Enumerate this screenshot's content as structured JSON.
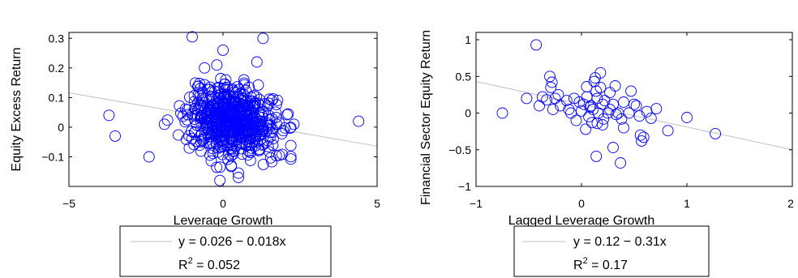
{
  "chart_data": [
    {
      "type": "scatter",
      "xlabel": "Leverage Growth",
      "ylabel": "Equity Excess Return",
      "xlim": [
        -5,
        5
      ],
      "ylim": [
        -0.2,
        0.32
      ],
      "xticks": [
        "−5",
        "0",
        "5"
      ],
      "yticks": [
        "−0.1",
        "0",
        "0.1",
        "0.2",
        "0.3"
      ],
      "grid": false,
      "marker_color": "#0000ff",
      "fit_color": "#c0c0c0",
      "legend_placement": "below",
      "legend": {
        "equation": "y = 0.026 − 0.018x",
        "r2_prefix": "R",
        "r2_sup": "2",
        "r2_value": " = 0.052"
      },
      "fit": {
        "intercept": 0.026,
        "slope": -0.018
      },
      "outliers": [
        {
          "x": -3.7,
          "y": 0.04
        },
        {
          "x": -3.5,
          "y": -0.03
        },
        {
          "x": -2.4,
          "y": -0.1
        },
        {
          "x": 4.4,
          "y": 0.02
        },
        {
          "x": -1.0,
          "y": 0.305
        },
        {
          "x": 1.3,
          "y": 0.3
        },
        {
          "x": 0.0,
          "y": 0.26
        },
        {
          "x": -0.6,
          "y": 0.2
        },
        {
          "x": -0.2,
          "y": 0.21
        },
        {
          "x": -0.1,
          "y": -0.18
        },
        {
          "x": 0.5,
          "y": -0.17
        },
        {
          "x": 0.5,
          "y": -0.155
        },
        {
          "x": 1.1,
          "y": 0.22
        },
        {
          "x": 2.3,
          "y": 0.01
        },
        {
          "x": -1.9,
          "y": 0.01
        }
      ],
      "cloud": {
        "n": 620,
        "x_center": 0.3,
        "x_spread": 0.7,
        "x_min": -1.8,
        "x_max": 2.2,
        "y_center": 0.02,
        "y_spread": 0.058,
        "y_min": -0.16,
        "y_max": 0.2,
        "seed": 7
      }
    },
    {
      "type": "scatter",
      "xlabel": "Lagged Leverage Growth",
      "ylabel": "Financial Sector Equity Return",
      "xlim": [
        -1,
        2
      ],
      "ylim": [
        -1,
        1.1
      ],
      "xticks": [
        "−1",
        "0",
        "1",
        "2"
      ],
      "yticks": [
        "−1",
        "−0.5",
        "0",
        "0.5",
        "1"
      ],
      "grid": false,
      "marker_color": "#0000ff",
      "fit_color": "#c0c0c0",
      "legend_placement": "below",
      "legend": {
        "equation": "y = 0.12 − 0.31x",
        "r2_prefix": "R",
        "r2_sup": "2",
        "r2_value": " = 0.17"
      },
      "fit": {
        "intercept": 0.12,
        "slope": -0.31
      },
      "points": [
        {
          "x": -0.75,
          "y": 0.0
        },
        {
          "x": -0.43,
          "y": 0.93
        },
        {
          "x": -0.52,
          "y": 0.2
        },
        {
          "x": -0.4,
          "y": 0.1
        },
        {
          "x": -0.37,
          "y": 0.22
        },
        {
          "x": -0.3,
          "y": 0.5
        },
        {
          "x": -0.28,
          "y": 0.42
        },
        {
          "x": -0.29,
          "y": 0.35
        },
        {
          "x": -0.33,
          "y": 0.18
        },
        {
          "x": -0.25,
          "y": 0.2
        },
        {
          "x": -0.2,
          "y": 0.1
        },
        {
          "x": -0.27,
          "y": 0.05
        },
        {
          "x": -0.22,
          "y": 0.25
        },
        {
          "x": -0.14,
          "y": 0.17
        },
        {
          "x": -0.12,
          "y": 0.05
        },
        {
          "x": -0.07,
          "y": 0.2
        },
        {
          "x": -0.05,
          "y": -0.1
        },
        {
          "x": -0.02,
          "y": 0.15
        },
        {
          "x": 0.0,
          "y": 0.03
        },
        {
          "x": 0.02,
          "y": 0.12
        },
        {
          "x": 0.04,
          "y": -0.22
        },
        {
          "x": 0.05,
          "y": 0.22
        },
        {
          "x": 0.07,
          "y": -0.05
        },
        {
          "x": 0.09,
          "y": 0.1
        },
        {
          "x": 0.1,
          "y": -0.13
        },
        {
          "x": 0.12,
          "y": 0.43
        },
        {
          "x": 0.13,
          "y": 0.48
        },
        {
          "x": 0.14,
          "y": 0.3
        },
        {
          "x": 0.15,
          "y": -0.14
        },
        {
          "x": 0.15,
          "y": 0.2
        },
        {
          "x": 0.16,
          "y": 0.0
        },
        {
          "x": 0.18,
          "y": 0.55
        },
        {
          "x": 0.18,
          "y": 0.35
        },
        {
          "x": 0.2,
          "y": 0.12
        },
        {
          "x": 0.21,
          "y": -0.08
        },
        {
          "x": 0.22,
          "y": 0.17
        },
        {
          "x": 0.14,
          "y": -0.59
        },
        {
          "x": 0.25,
          "y": 0.0
        },
        {
          "x": 0.27,
          "y": 0.05
        },
        {
          "x": 0.3,
          "y": 0.12
        },
        {
          "x": 0.3,
          "y": -0.47
        },
        {
          "x": 0.32,
          "y": 0.37
        },
        {
          "x": 0.35,
          "y": 0.0
        },
        {
          "x": 0.37,
          "y": -0.68
        },
        {
          "x": 0.38,
          "y": -0.08
        },
        {
          "x": 0.4,
          "y": -0.2
        },
        {
          "x": 0.4,
          "y": 0.15
        },
        {
          "x": 0.47,
          "y": 0.3
        },
        {
          "x": 0.5,
          "y": 0.12
        },
        {
          "x": 0.52,
          "y": 0.1
        },
        {
          "x": 0.55,
          "y": -0.04
        },
        {
          "x": 0.56,
          "y": -0.3
        },
        {
          "x": 0.57,
          "y": -0.38
        },
        {
          "x": 0.59,
          "y": -0.33
        },
        {
          "x": 0.62,
          "y": 0.02
        },
        {
          "x": 0.66,
          "y": -0.07
        },
        {
          "x": 0.71,
          "y": 0.06
        },
        {
          "x": 0.82,
          "y": -0.24
        },
        {
          "x": 1.0,
          "y": -0.06
        },
        {
          "x": 1.27,
          "y": -0.28
        },
        {
          "x": 0.08,
          "y": 0.08
        },
        {
          "x": -0.1,
          "y": 0.0
        },
        {
          "x": 0.27,
          "y": 0.28
        },
        {
          "x": 0.11,
          "y": 0.05
        },
        {
          "x": 0.05,
          "y": 0.36
        },
        {
          "x": 0.2,
          "y": -0.16
        },
        {
          "x": 0.45,
          "y": 0.0
        },
        {
          "x": 0.33,
          "y": -0.02
        }
      ]
    }
  ]
}
